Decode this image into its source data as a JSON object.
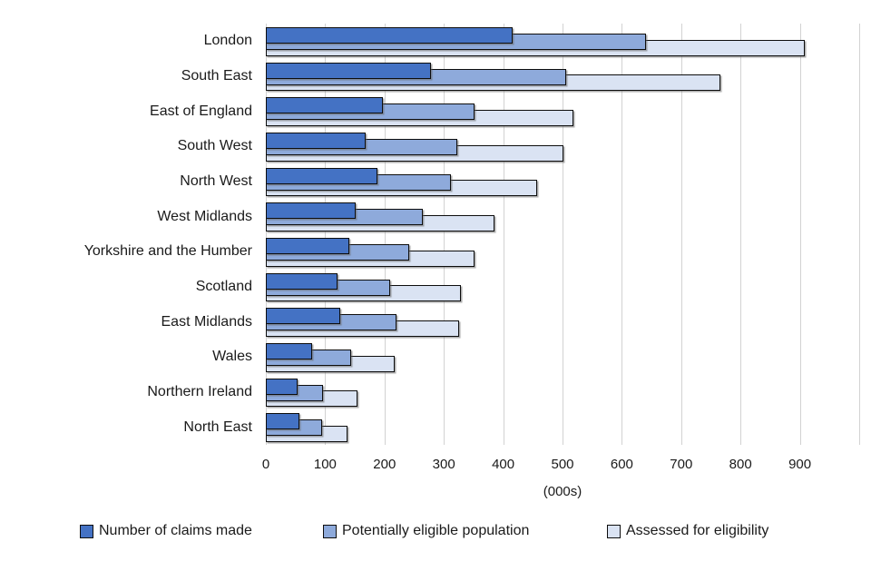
{
  "chart_data": {
    "type": "bar",
    "orientation": "horizontal",
    "title": "",
    "xlabel": "(000s)",
    "ylabel": "",
    "xlim": [
      0,
      1000
    ],
    "grid": true,
    "legend_position": "bottom",
    "x_ticks": [
      0,
      100,
      200,
      300,
      400,
      500,
      600,
      700,
      800,
      900
    ],
    "categories": [
      "London",
      "South East",
      "East of England",
      "South West",
      "North West",
      "West Midlands",
      "Yorkshire and the Humber",
      "Scotland",
      "East Midlands",
      "Wales",
      "Northern Ireland",
      "North East"
    ],
    "series": [
      {
        "name": "Number of claims made",
        "color": "#4472C4",
        "values": [
          413,
          275,
          194,
          165,
          185,
          149,
          138,
          118,
          122,
          75,
          51,
          54
        ]
      },
      {
        "name": "Potentially eligible population",
        "color": "#8EAADB",
        "values": [
          637,
          503,
          349,
          320,
          309,
          262,
          238,
          206,
          217,
          140,
          94,
          91
        ]
      },
      {
        "name": "Assessed for eligibility",
        "color": "#DAE3F3",
        "values": [
          905,
          763,
          515,
          498,
          454,
          382,
          348,
          326,
          322,
          214,
          152,
          134
        ]
      }
    ]
  },
  "colors": {
    "gridline": "#D2D2D2",
    "bar_border": "#0D0D0D",
    "text": "#1A1A1A"
  }
}
